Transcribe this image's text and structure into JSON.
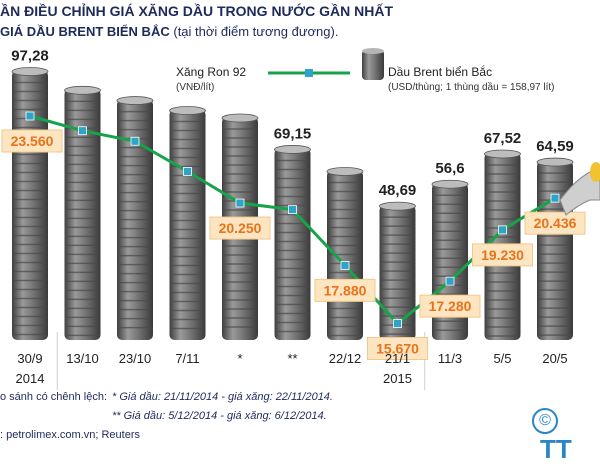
{
  "header": {
    "title": "ẦN ĐIỀU CHỈNH GIÁ XĂNG DẦU TRONG NƯỚC GẦN NHẤT",
    "subtitle_bold": "GIÁ DẦU BRENT BIỂN BẮC",
    "subtitle_rest": "(tại thời điểm tương đương)."
  },
  "legend": {
    "gasoline_name": "Xăng Ron 92",
    "gasoline_unit": "(VNĐ/lít)",
    "brent_name": "Dầu Brent biển Bắc",
    "brent_unit": "(USD/thùng; 1 thùng dầu = 158,97 lít)"
  },
  "footer": {
    "note_main": "o sánh có chênh lệch:",
    "note_1": "* Giá dầu: 21/11/2014 - giá xăng: 22/11/2014.",
    "note_2": "** Giá dầu: 5/12/2014 - giá xăng: 6/12/2014.",
    "source": ": petrolimex.com.vn; Reuters",
    "copyright_symbol": "©",
    "logo_text": "TT"
  },
  "colors": {
    "line": "#17a34a",
    "marker": "#2fa3c8",
    "label_bg": "#fce5c0",
    "label_text": "#e8731a",
    "barrel": "#6b6b6b",
    "title": "#1d2a5c"
  },
  "chart_data": {
    "type": "bar+line",
    "categories": [
      "30/9",
      "13/10",
      "23/10",
      "7/11",
      "*",
      "**",
      "22/12",
      "21/1",
      "11/3",
      "5/5",
      "20/5"
    ],
    "year_labels": [
      {
        "index": 0,
        "text": "2014"
      },
      {
        "index": 7,
        "text": "2015"
      }
    ],
    "brent": {
      "name": "Dầu Brent biển Bắc",
      "values": [
        97.28,
        90.5,
        86.8,
        83.2,
        80.5,
        69.15,
        61.2,
        48.69,
        56.6,
        67.52,
        64.59
      ],
      "labels": [
        "97,28",
        "",
        "",
        "",
        "",
        "69,15",
        "",
        "48,69",
        "56,6",
        "67,52",
        "64,59"
      ]
    },
    "gasoline": {
      "name": "Xăng Ron 92",
      "values": [
        23560,
        23000,
        22600,
        21450,
        20250,
        20000,
        17880,
        15670,
        17280,
        19230,
        20436
      ],
      "labels": [
        "23.560",
        "",
        "",
        "",
        "20.250",
        "",
        "17.880",
        "15.670",
        "17.280",
        "19.230",
        "20.436"
      ]
    }
  }
}
